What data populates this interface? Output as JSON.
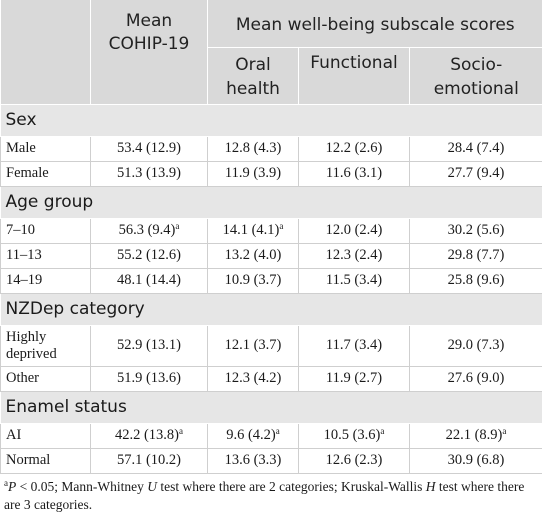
{
  "header": {
    "mean_cohip": "Mean COHIP-19",
    "subscale_group": "Mean well-being subscale scores",
    "oral": "Oral health",
    "functional": "Functional",
    "socio": "Socio-emotional"
  },
  "sections": [
    {
      "title": "Sex",
      "rows": [
        {
          "label": "Male",
          "cohip": "53.4 (12.9)",
          "oral": "12.8 (4.3)",
          "functional": "12.2 (2.6)",
          "socio": "28.4 (7.4)"
        },
        {
          "label": "Female",
          "cohip": "51.3 (13.9)",
          "oral": "11.9 (3.9)",
          "functional": "11.6 (3.1)",
          "socio": "27.7 (9.4)"
        }
      ]
    },
    {
      "title": "Age group",
      "rows": [
        {
          "label": "7–10",
          "cohip": "56.3 (9.4)",
          "cohip_sup": "a",
          "oral": "14.1 (4.1)",
          "oral_sup": "a",
          "functional": "12.0 (2.4)",
          "socio": "30.2 (5.6)"
        },
        {
          "label": "11–13",
          "cohip": "55.2 (12.6)",
          "oral": "13.2 (4.0)",
          "functional": "12.3 (2.4)",
          "socio": "29.8 (7.7)"
        },
        {
          "label": "14–19",
          "cohip": "48.1 (14.4)",
          "oral": "10.9 (3.7)",
          "functional": "11.5 (3.4)",
          "socio": "25.8 (9.6)"
        }
      ]
    },
    {
      "title": "NZDep category",
      "rows": [
        {
          "label": "Highly deprived",
          "cohip": "52.9 (13.1)",
          "oral": "12.1 (3.7)",
          "functional": "11.7 (3.4)",
          "socio": "29.0 (7.3)"
        },
        {
          "label": "Other",
          "cohip": "51.9 (13.6)",
          "oral": "12.3 (4.2)",
          "functional": "11.9 (2.7)",
          "socio": "27.6 (9.0)"
        }
      ]
    },
    {
      "title": "Enamel status",
      "rows": [
        {
          "label": "AI",
          "cohip": "42.2 (13.8)",
          "cohip_sup": "a",
          "oral": "9.6 (4.2)",
          "oral_sup": "a",
          "functional": "10.5 (3.6)",
          "functional_sup": "a",
          "socio": "22.1 (8.9)",
          "socio_sup": "a"
        },
        {
          "label": "Normal",
          "cohip": "57.1 (10.2)",
          "oral": "13.6 (3.3)",
          "functional": "12.6 (2.3)",
          "socio": "30.9 (6.8)"
        }
      ]
    }
  ],
  "footnote": {
    "marker": "a",
    "p": "P",
    "part1": " < 0.05; Mann-Whitney ",
    "u": "U",
    "part2": " test where there are 2 categories; Kruskal-Wallis ",
    "h": "H",
    "part3": " test where there are 3 categories."
  }
}
